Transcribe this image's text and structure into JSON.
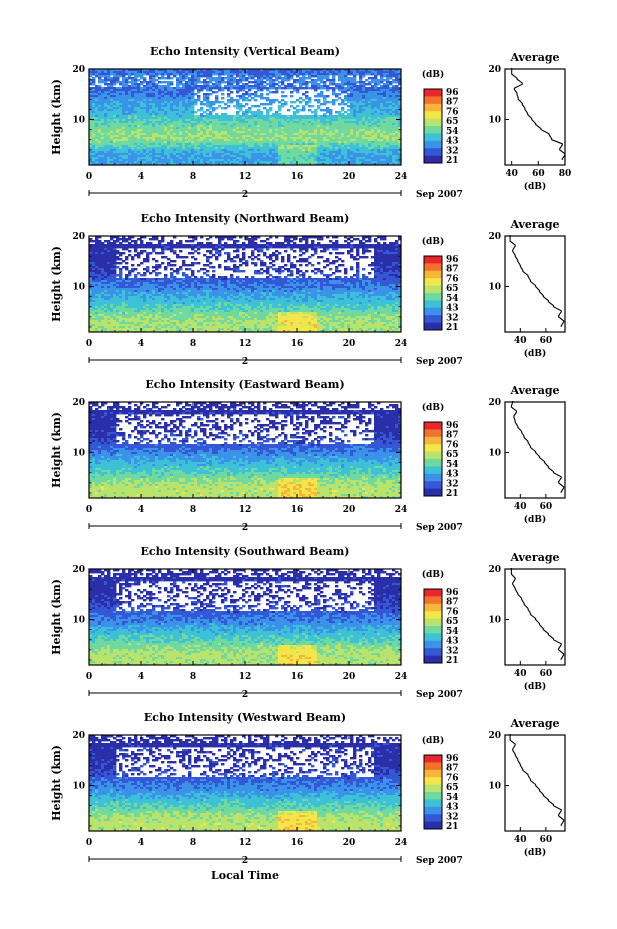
{
  "figure": {
    "xlabel": "Local Time",
    "date_label": "Sep 2007",
    "day_label": "2",
    "height_label": "Height (km)",
    "colorbar_unit": "(dB)",
    "average_title": "Average",
    "average_xlabel": "(dB)"
  },
  "colorbar": {
    "ticks": [
      "96",
      "87",
      "76",
      "65",
      "54",
      "43",
      "32",
      "21"
    ],
    "colors": [
      "#e8262b",
      "#f4702d",
      "#f9b43a",
      "#f2e64b",
      "#b9e36a",
      "#6fd9a0",
      "#3dc1d6",
      "#3a93e8",
      "#3457d6",
      "#2a2ea8"
    ]
  },
  "chart_data": [
    {
      "type": "heatmap",
      "title": "Echo Intensity (Vertical Beam)",
      "x_range": [
        0,
        24
      ],
      "y_range": [
        1,
        20
      ],
      "x_ticks": [
        0,
        4,
        8,
        12,
        16,
        20,
        24
      ],
      "y_ticks": [
        10,
        20
      ],
      "value_range_db": [
        21,
        96
      ],
      "profile": [
        [
          3,
          42
        ],
        [
          4,
          46
        ],
        [
          5,
          52
        ],
        [
          6,
          58
        ],
        [
          7,
          58
        ],
        [
          8,
          56
        ],
        [
          9,
          54
        ],
        [
          10,
          50
        ],
        [
          11,
          46
        ],
        [
          12,
          44
        ],
        [
          13,
          42
        ],
        [
          14,
          40
        ],
        [
          15,
          37
        ],
        [
          16,
          34
        ],
        [
          17,
          36
        ],
        [
          18,
          38
        ],
        [
          19,
          35
        ]
      ],
      "average": {
        "title": "Average",
        "x_ticks": [
          40,
          60,
          80
        ],
        "x_range": [
          35,
          80
        ],
        "y_ticks": [
          10,
          20
        ],
        "profile": [
          [
            2,
            78
          ],
          [
            3,
            80
          ],
          [
            4,
            76
          ],
          [
            5,
            78
          ],
          [
            6,
            70
          ],
          [
            7,
            68
          ],
          [
            8,
            62
          ],
          [
            9,
            58
          ],
          [
            10,
            55
          ],
          [
            11,
            52
          ],
          [
            12,
            50
          ],
          [
            13,
            48
          ],
          [
            14,
            45
          ],
          [
            15,
            44
          ],
          [
            16,
            42
          ],
          [
            17,
            48
          ],
          [
            18,
            44
          ],
          [
            19,
            40
          ],
          [
            20,
            40
          ]
        ]
      }
    },
    {
      "type": "heatmap",
      "title": "Echo Intensity (Northward Beam)",
      "x_range": [
        0,
        24
      ],
      "y_range": [
        1,
        20
      ],
      "x_ticks": [
        0,
        4,
        8,
        12,
        16,
        20,
        24
      ],
      "y_ticks": [
        10,
        20
      ],
      "value_range_db": [
        21,
        96
      ],
      "profile": [
        [
          3,
          60
        ],
        [
          4,
          58
        ],
        [
          5,
          54
        ],
        [
          6,
          50
        ],
        [
          7,
          47
        ],
        [
          8,
          44
        ],
        [
          9,
          40
        ],
        [
          10,
          37
        ],
        [
          11,
          34
        ],
        [
          12,
          31
        ],
        [
          13,
          28
        ],
        [
          14,
          26
        ],
        [
          15,
          25
        ],
        [
          16,
          24
        ],
        [
          17,
          26
        ],
        [
          18,
          25
        ],
        [
          19,
          24
        ]
      ],
      "average": {
        "title": "Average",
        "x_ticks": [
          40,
          60
        ],
        "x_range": [
          28,
          75
        ],
        "y_ticks": [
          10,
          20
        ],
        "profile": [
          [
            2,
            72
          ],
          [
            3,
            74
          ],
          [
            4,
            70
          ],
          [
            5,
            72
          ],
          [
            6,
            66
          ],
          [
            7,
            62
          ],
          [
            8,
            58
          ],
          [
            9,
            55
          ],
          [
            10,
            52
          ],
          [
            11,
            48
          ],
          [
            12,
            46
          ],
          [
            13,
            42
          ],
          [
            14,
            40
          ],
          [
            15,
            38
          ],
          [
            16,
            36
          ],
          [
            17,
            34
          ],
          [
            18,
            36
          ],
          [
            19,
            32
          ],
          [
            20,
            32
          ]
        ]
      }
    },
    {
      "type": "heatmap",
      "title": "Echo Intensity (Eastward Beam)",
      "x_range": [
        0,
        24
      ],
      "y_range": [
        1,
        20
      ],
      "x_ticks": [
        0,
        4,
        8,
        12,
        16,
        20,
        24
      ],
      "y_ticks": [
        10,
        20
      ],
      "value_range_db": [
        21,
        96
      ],
      "profile": [
        [
          3,
          62
        ],
        [
          4,
          60
        ],
        [
          5,
          55
        ],
        [
          6,
          51
        ],
        [
          7,
          48
        ],
        [
          8,
          45
        ],
        [
          9,
          41
        ],
        [
          10,
          38
        ],
        [
          11,
          34
        ],
        [
          12,
          31
        ],
        [
          13,
          28
        ],
        [
          14,
          26
        ],
        [
          15,
          25
        ],
        [
          16,
          24
        ],
        [
          17,
          26
        ],
        [
          18,
          25
        ],
        [
          19,
          24
        ]
      ],
      "average": {
        "title": "Average",
        "x_ticks": [
          40,
          60
        ],
        "x_range": [
          28,
          75
        ],
        "y_ticks": [
          10,
          20
        ],
        "profile": [
          [
            2,
            72
          ],
          [
            3,
            74
          ],
          [
            4,
            70
          ],
          [
            5,
            72
          ],
          [
            6,
            66
          ],
          [
            7,
            62
          ],
          [
            8,
            59
          ],
          [
            9,
            55
          ],
          [
            10,
            52
          ],
          [
            11,
            48
          ],
          [
            12,
            46
          ],
          [
            13,
            43
          ],
          [
            14,
            41
          ],
          [
            15,
            38
          ],
          [
            16,
            36
          ],
          [
            17,
            35
          ],
          [
            18,
            37
          ],
          [
            19,
            33
          ],
          [
            20,
            34
          ]
        ]
      }
    },
    {
      "type": "heatmap",
      "title": "Echo Intensity (Southward Beam)",
      "x_range": [
        0,
        24
      ],
      "y_range": [
        1,
        20
      ],
      "x_ticks": [
        0,
        4,
        8,
        12,
        16,
        20,
        24
      ],
      "y_ticks": [
        10,
        20
      ],
      "value_range_db": [
        21,
        96
      ],
      "profile": [
        [
          3,
          61
        ],
        [
          4,
          59
        ],
        [
          5,
          55
        ],
        [
          6,
          51
        ],
        [
          7,
          48
        ],
        [
          8,
          44
        ],
        [
          9,
          40
        ],
        [
          10,
          37
        ],
        [
          11,
          34
        ],
        [
          12,
          31
        ],
        [
          13,
          28
        ],
        [
          14,
          26
        ],
        [
          15,
          25
        ],
        [
          16,
          24
        ],
        [
          17,
          26
        ],
        [
          18,
          25
        ],
        [
          19,
          24
        ]
      ],
      "average": {
        "title": "Average",
        "x_ticks": [
          40,
          60
        ],
        "x_range": [
          28,
          75
        ],
        "y_ticks": [
          10,
          20
        ],
        "profile": [
          [
            2,
            72
          ],
          [
            3,
            74
          ],
          [
            4,
            70
          ],
          [
            5,
            72
          ],
          [
            6,
            66
          ],
          [
            7,
            62
          ],
          [
            8,
            58
          ],
          [
            9,
            55
          ],
          [
            10,
            52
          ],
          [
            11,
            48
          ],
          [
            12,
            46
          ],
          [
            13,
            43
          ],
          [
            14,
            41
          ],
          [
            15,
            38
          ],
          [
            16,
            36
          ],
          [
            17,
            34
          ],
          [
            18,
            36
          ],
          [
            19,
            33
          ],
          [
            20,
            33
          ]
        ]
      }
    },
    {
      "type": "heatmap",
      "title": "Echo Intensity (Westward Beam)",
      "x_range": [
        0,
        24
      ],
      "y_range": [
        1,
        20
      ],
      "x_ticks": [
        0,
        4,
        8,
        12,
        16,
        20,
        24
      ],
      "y_ticks": [
        10,
        20
      ],
      "value_range_db": [
        21,
        96
      ],
      "profile": [
        [
          3,
          62
        ],
        [
          4,
          60
        ],
        [
          5,
          55
        ],
        [
          6,
          51
        ],
        [
          7,
          48
        ],
        [
          8,
          44
        ],
        [
          9,
          40
        ],
        [
          10,
          37
        ],
        [
          11,
          34
        ],
        [
          12,
          31
        ],
        [
          13,
          28
        ],
        [
          14,
          26
        ],
        [
          15,
          25
        ],
        [
          16,
          24
        ],
        [
          17,
          26
        ],
        [
          18,
          25
        ],
        [
          19,
          24
        ]
      ],
      "average": {
        "title": "Average",
        "x_ticks": [
          40,
          60
        ],
        "x_range": [
          28,
          75
        ],
        "y_ticks": [
          10,
          20
        ],
        "profile": [
          [
            2,
            72
          ],
          [
            3,
            74
          ],
          [
            4,
            70
          ],
          [
            5,
            72
          ],
          [
            6,
            66
          ],
          [
            7,
            62
          ],
          [
            8,
            58
          ],
          [
            9,
            55
          ],
          [
            10,
            52
          ],
          [
            11,
            48
          ],
          [
            12,
            46
          ],
          [
            13,
            42
          ],
          [
            14,
            40
          ],
          [
            15,
            38
          ],
          [
            16,
            36
          ],
          [
            17,
            34
          ],
          [
            18,
            36
          ],
          [
            19,
            32
          ],
          [
            20,
            32
          ]
        ]
      }
    }
  ]
}
